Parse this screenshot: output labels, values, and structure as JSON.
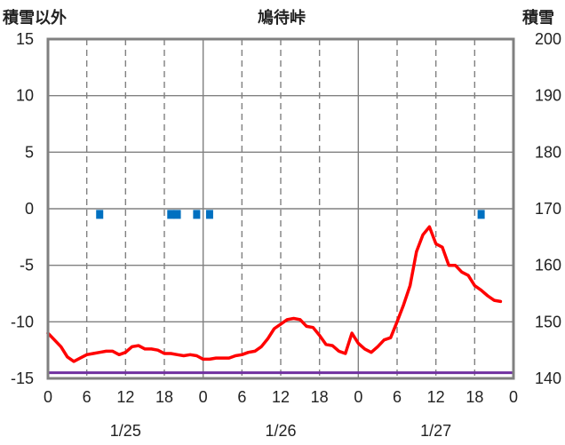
{
  "chart_data": {
    "type": "line",
    "title": "鳩待峠",
    "ylabel_left": "積雪以外",
    "ylabel_right": "積雪",
    "y_left": {
      "min": -15,
      "max": 15,
      "ticks": [
        15,
        10,
        5,
        0,
        -5,
        -10,
        -15
      ]
    },
    "y_right": {
      "min": 140,
      "max": 200,
      "ticks": [
        200,
        190,
        180,
        170,
        160,
        150,
        140
      ]
    },
    "x": {
      "min": 0,
      "max": 72,
      "unit": "hours from 1/25 00:00"
    },
    "x_ticks": [
      {
        "hour": 0,
        "label": "0"
      },
      {
        "hour": 6,
        "label": "6"
      },
      {
        "hour": 12,
        "label": "12"
      },
      {
        "hour": 18,
        "label": "18"
      },
      {
        "hour": 24,
        "label": "0"
      },
      {
        "hour": 30,
        "label": "6"
      },
      {
        "hour": 36,
        "label": "12"
      },
      {
        "hour": 42,
        "label": "18"
      },
      {
        "hour": 48,
        "label": "0"
      },
      {
        "hour": 54,
        "label": "6"
      },
      {
        "hour": 60,
        "label": "12"
      },
      {
        "hour": 66,
        "label": "18"
      },
      {
        "hour": 72,
        "label": "0"
      }
    ],
    "date_labels": [
      {
        "hour": 12,
        "label": "1/25"
      },
      {
        "hour": 36,
        "label": "1/26"
      },
      {
        "hour": 60,
        "label": "1/27"
      }
    ],
    "series": [
      {
        "axis": "left",
        "color": "#ff0000",
        "points": [
          [
            0,
            -11.0
          ],
          [
            1,
            -11.6
          ],
          [
            2,
            -12.2
          ],
          [
            3,
            -13.1
          ],
          [
            4,
            -13.5
          ],
          [
            5,
            -13.2
          ],
          [
            6,
            -12.9
          ],
          [
            7,
            -12.8
          ],
          [
            8,
            -12.7
          ],
          [
            9,
            -12.6
          ],
          [
            10,
            -12.6
          ],
          [
            11,
            -12.9
          ],
          [
            12,
            -12.7
          ],
          [
            13,
            -12.2
          ],
          [
            14,
            -12.1
          ],
          [
            15,
            -12.4
          ],
          [
            16,
            -12.4
          ],
          [
            17,
            -12.5
          ],
          [
            18,
            -12.8
          ],
          [
            19,
            -12.8
          ],
          [
            20,
            -12.9
          ],
          [
            21,
            -13.0
          ],
          [
            22,
            -12.9
          ],
          [
            23,
            -13.0
          ],
          [
            24,
            -13.3
          ],
          [
            25,
            -13.3
          ],
          [
            26,
            -13.2
          ],
          [
            27,
            -13.2
          ],
          [
            28,
            -13.2
          ],
          [
            29,
            -13.0
          ],
          [
            30,
            -12.9
          ],
          [
            31,
            -12.7
          ],
          [
            32,
            -12.6
          ],
          [
            33,
            -12.2
          ],
          [
            34,
            -11.5
          ],
          [
            35,
            -10.6
          ],
          [
            36,
            -10.2
          ],
          [
            37,
            -9.8
          ],
          [
            38,
            -9.7
          ],
          [
            39,
            -9.8
          ],
          [
            40,
            -10.4
          ],
          [
            41,
            -10.5
          ],
          [
            42,
            -11.2
          ],
          [
            43,
            -12.0
          ],
          [
            44,
            -12.1
          ],
          [
            45,
            -12.6
          ],
          [
            46,
            -12.8
          ],
          [
            47,
            -11.0
          ],
          [
            48,
            -11.9
          ],
          [
            49,
            -12.4
          ],
          [
            50,
            -12.7
          ],
          [
            51,
            -12.2
          ],
          [
            52,
            -11.6
          ],
          [
            53,
            -11.4
          ],
          [
            54,
            -10.0
          ],
          [
            55,
            -8.5
          ],
          [
            56,
            -6.8
          ],
          [
            57,
            -3.8
          ],
          [
            58,
            -2.3
          ],
          [
            59,
            -1.6
          ],
          [
            60,
            -3.1
          ],
          [
            61,
            -3.4
          ],
          [
            62,
            -5.0
          ],
          [
            63,
            -5.0
          ],
          [
            64,
            -5.6
          ],
          [
            65,
            -5.9
          ],
          [
            66,
            -6.8
          ],
          [
            67,
            -7.2
          ],
          [
            68,
            -7.7
          ],
          [
            69,
            -8.1
          ],
          [
            70,
            -8.2
          ]
        ]
      },
      {
        "axis": "right",
        "color": "#7030a0",
        "points": [
          [
            0,
            141.0
          ],
          [
            72,
            141.0
          ]
        ]
      }
    ],
    "markers": {
      "axis": "left",
      "color": "#0070c0",
      "hours": [
        8,
        19,
        20,
        23,
        25,
        67
      ],
      "value": -0.5
    }
  }
}
